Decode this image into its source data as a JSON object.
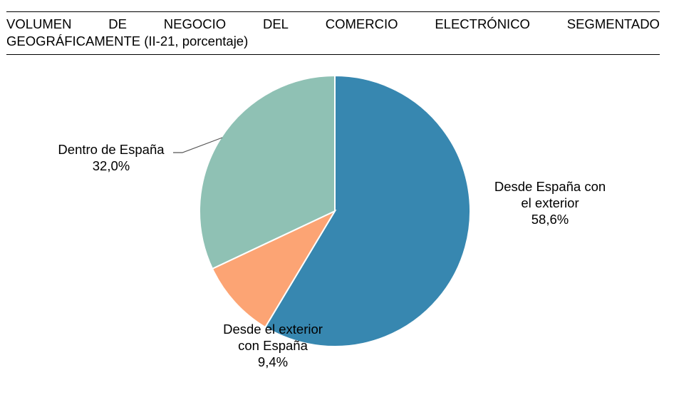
{
  "chart_data": {
    "type": "pie",
    "title": "VOLUMEN DE NEGOCIO DEL COMERCIO ELECTRÓNICO SEGMENTADO GEOGRÁFICAMENTE (II-21, porcentaje)",
    "title_line1_words": [
      "VOLUMEN",
      "DE",
      "NEGOCIO",
      "DEL",
      "COMERCIO",
      "ELECTRÓNICO",
      "SEGMENTADO"
    ],
    "title_line2": "GEOGRÁFICAMENTE (II-21, porcentaje)",
    "slices": [
      {
        "label_lines": [
          "Desde España con",
          "el exterior"
        ],
        "value": 58.6,
        "value_label": "58,6%",
        "color": "#3787b0"
      },
      {
        "label_lines": [
          "Desde el exterior",
          "con España"
        ],
        "value": 9.4,
        "value_label": "9,4%",
        "color": "#fca474"
      },
      {
        "label_lines": [
          "Dentro de España"
        ],
        "value": 32.0,
        "value_label": "32,0%",
        "color": "#8fc1b4"
      }
    ],
    "start_angle_deg": 0,
    "direction": "clockwise",
    "legend": "none"
  }
}
